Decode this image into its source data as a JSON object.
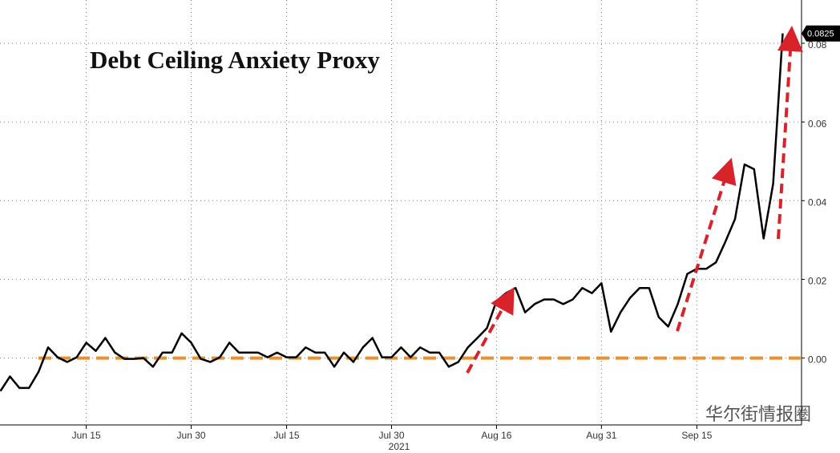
{
  "chart_data": {
    "type": "line",
    "title": "Debt Ceiling Anxiety Proxy",
    "x_label": "2021",
    "watermark": "华尔街情报圈",
    "categories": [
      null,
      null,
      null,
      null,
      null,
      null,
      null,
      null,
      null,
      "Jun 15",
      null,
      null,
      null,
      null,
      null,
      null,
      null,
      null,
      null,
      null,
      "Jun 30",
      null,
      null,
      null,
      null,
      null,
      null,
      null,
      null,
      null,
      "Jul 15",
      null,
      null,
      null,
      null,
      null,
      null,
      null,
      null,
      null,
      null,
      "Jul 30",
      null,
      null,
      null,
      null,
      null,
      null,
      null,
      null,
      null,
      null,
      "Aug 16",
      null,
      null,
      null,
      null,
      null,
      null,
      null,
      null,
      null,
      null,
      "Aug 31",
      null,
      null,
      null,
      null,
      null,
      null,
      null,
      null,
      null,
      "Sep 15",
      null,
      null,
      null,
      null,
      null,
      null,
      null,
      null,
      null
    ],
    "series": [
      {
        "color": "#000000",
        "values": [
          -0.0084,
          -0.0047,
          -0.0076,
          -0.0076,
          -0.0035,
          0.0027,
          0.0002,
          -0.001,
          0.0002,
          0.0039,
          0.0018,
          0.0051,
          0.0014,
          -0.0002,
          -0.0002,
          0,
          -0.0022,
          0.0014,
          0.0014,
          0.0063,
          0.0039,
          -0.0002,
          -0.001,
          0.0002,
          0.0039,
          0.0014,
          0.0014,
          0.0014,
          0.0002,
          0.0014,
          0.0002,
          0.0002,
          0.0027,
          0.0014,
          0.0014,
          -0.0022,
          0.0014,
          -0.001,
          0.0027,
          0.0051,
          0.0002,
          0.0002,
          0.0027,
          0.0002,
          0.0027,
          0.0014,
          0.0014,
          -0.0022,
          -0.001,
          0.0027,
          0.0051,
          0.0076,
          0.0145,
          0.0165,
          0.0178,
          0.0116,
          0.0137,
          0.0149,
          0.0149,
          0.0137,
          0.0149,
          0.0178,
          0.0165,
          0.019,
          0.0067,
          0.0116,
          0.0153,
          0.0178,
          0.0178,
          0.0104,
          0.008,
          0.0137,
          0.0214,
          0.0227,
          0.0227,
          0.0243,
          0.0296,
          0.0353,
          0.0492,
          0.048,
          0.0304,
          0.0443,
          0.0825
        ]
      }
    ],
    "ylim": [
      -0.017,
      0.091
    ],
    "yticks": [
      {
        "value": 0,
        "label": "0.00"
      },
      {
        "value": 0.02,
        "label": "0.02"
      },
      {
        "value": 0.04,
        "label": "0.04"
      },
      {
        "value": 0.06,
        "label": "0.06"
      },
      {
        "value": 0.08,
        "label": "0.08"
      }
    ],
    "grid": true,
    "reference_line": {
      "value": 0,
      "color": "#e8912d"
    }
  }
}
